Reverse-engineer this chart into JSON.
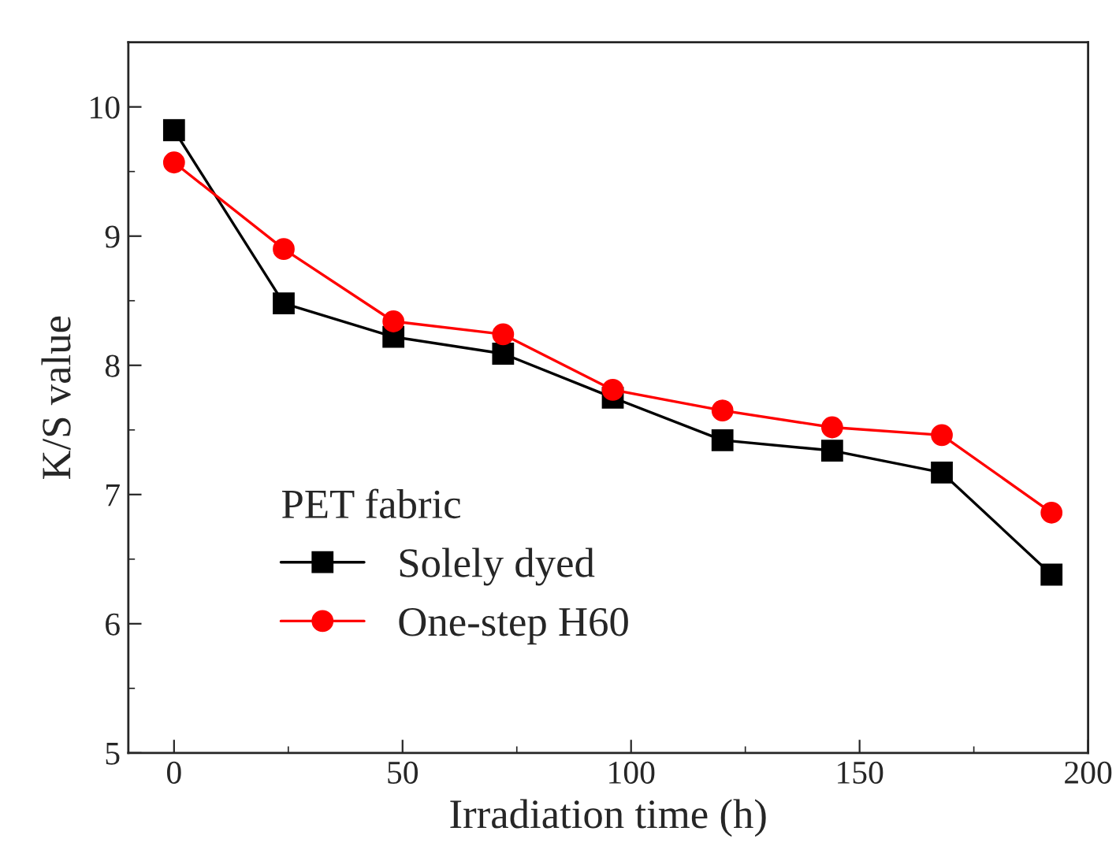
{
  "chart_data": {
    "type": "line",
    "xlabel": "Irradiation time (h)",
    "ylabel": "K/S value",
    "legend_title": "PET fabric",
    "x": [
      0,
      24,
      48,
      72,
      96,
      120,
      144,
      168,
      192
    ],
    "series": [
      {
        "name": "Solely dyed",
        "color": "#000000",
        "marker": "square",
        "values": [
          9.82,
          8.48,
          8.22,
          8.09,
          7.75,
          7.42,
          7.34,
          7.17,
          6.38
        ]
      },
      {
        "name": "One-step H60",
        "color": "#ff0000",
        "marker": "circle",
        "values": [
          9.57,
          8.9,
          8.34,
          8.24,
          7.81,
          7.65,
          7.52,
          7.46,
          6.86
        ]
      }
    ],
    "xlim": [
      -10,
      200
    ],
    "ylim": [
      5,
      10.5
    ],
    "xticks": [
      0,
      50,
      100,
      150,
      200
    ],
    "yticks": [
      5,
      6,
      7,
      8,
      9,
      10
    ],
    "grid": false,
    "legend": "bottom left",
    "line_style": "solid"
  }
}
